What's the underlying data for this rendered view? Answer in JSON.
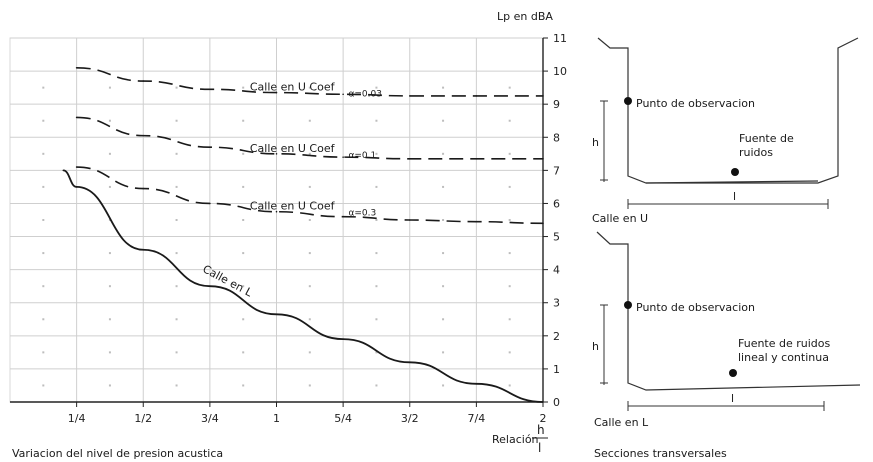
{
  "chart_data": {
    "type": "line",
    "ylabel": "Lp en dBA",
    "xlabel_prefix": "Relación",
    "xlabel_num": "h",
    "xlabel_den": "l",
    "caption": "Variacion del nivel de presion acustica",
    "x_categories": [
      "1/4",
      "1/2",
      "3/4",
      "1",
      "5/4",
      "3/2",
      "7/4",
      "2"
    ],
    "x_numeric": [
      0.25,
      0.5,
      0.75,
      1.0,
      1.25,
      1.5,
      1.75,
      2.0
    ],
    "xlim": [
      0.0,
      2.0
    ],
    "y_ticks": [
      0,
      1,
      2,
      3,
      4,
      5,
      6,
      7,
      8,
      9,
      10,
      11
    ],
    "ylim": [
      0,
      11
    ],
    "grid": true,
    "series": [
      {
        "name": "Calle en U Coef. α=0.03",
        "label_text": "Calle en U Coef",
        "coef_text": "α=0.03",
        "style": "dashed",
        "x": [
          0.25,
          0.5,
          0.75,
          1.0,
          1.25,
          1.5,
          1.75,
          2.0
        ],
        "y": [
          10.1,
          9.7,
          9.45,
          9.35,
          9.3,
          9.25,
          9.25,
          9.25
        ]
      },
      {
        "name": "Calle en U Coef. α=0.1",
        "label_text": "Calle en U Coef",
        "coef_text": "α=0.1",
        "style": "dashed",
        "x": [
          0.25,
          0.5,
          0.75,
          1.0,
          1.25,
          1.5,
          1.75,
          2.0
        ],
        "y": [
          8.6,
          8.05,
          7.7,
          7.5,
          7.4,
          7.35,
          7.35,
          7.35
        ]
      },
      {
        "name": "Calle en U Coef. α=0.3",
        "label_text": "Calle en U Coef",
        "coef_text": "α=0.3",
        "style": "dashed",
        "x": [
          0.25,
          0.5,
          0.75,
          1.0,
          1.25,
          1.5,
          1.75,
          2.0
        ],
        "y": [
          7.1,
          6.45,
          6.0,
          5.75,
          5.6,
          5.5,
          5.45,
          5.4
        ]
      },
      {
        "name": "Calle en L",
        "label_text": "Calle en L",
        "style": "solid",
        "x": [
          0.2,
          0.25,
          0.5,
          0.75,
          1.0,
          1.25,
          1.5,
          1.75,
          2.0
        ],
        "y": [
          7.0,
          6.5,
          4.6,
          3.5,
          2.65,
          1.9,
          1.2,
          0.55,
          0.0
        ]
      }
    ]
  },
  "sections": {
    "title": "Secciones transversales",
    "u": {
      "caption": "Calle en U",
      "observation_point": "Punto de observacion",
      "source": [
        "Fuente de",
        "ruidos"
      ],
      "h_label": "h",
      "l_label": "l"
    },
    "l": {
      "caption": "Calle en L",
      "observation_point": "Punto de observacion",
      "source": [
        "Fuente de ruidos",
        "lineal y continua"
      ],
      "h_label": "h",
      "l_label": "l"
    }
  }
}
